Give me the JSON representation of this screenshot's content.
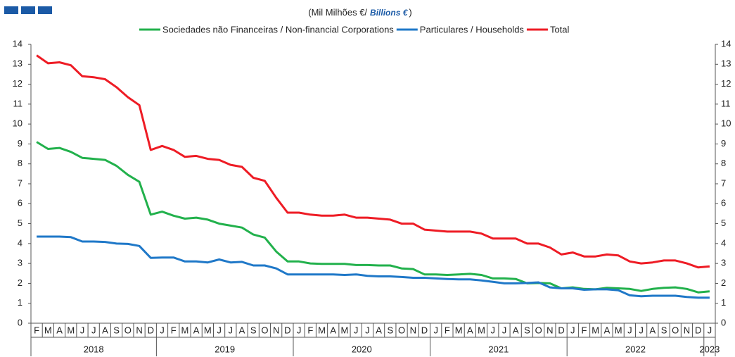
{
  "chart_data": {
    "type": "line",
    "title": "(Mil Milhões €/",
    "title_en": "Billions €",
    "title_close": ")",
    "categories": [
      "F",
      "M",
      "A",
      "M",
      "J",
      "J",
      "A",
      "S",
      "O",
      "N",
      "D",
      "J",
      "F",
      "M",
      "A",
      "M",
      "J",
      "J",
      "A",
      "S",
      "O",
      "N",
      "D",
      "J",
      "F",
      "M",
      "A",
      "M",
      "J",
      "J",
      "A",
      "S",
      "O",
      "N",
      "D",
      "J",
      "F",
      "M",
      "A",
      "M",
      "J",
      "J",
      "A",
      "S",
      "O",
      "N",
      "D",
      "J",
      "F",
      "M",
      "A",
      "M",
      "J",
      "J",
      "A",
      "S",
      "O",
      "N",
      "D",
      "J"
    ],
    "years": [
      "2018",
      "2019",
      "2020",
      "2021",
      "2022",
      "2023"
    ],
    "series": [
      {
        "name": "Sociedades não Financeiras / Non-financial Corporations",
        "color": "#22b14c",
        "values": [
          9.1,
          8.75,
          8.8,
          8.6,
          8.3,
          8.25,
          8.2,
          7.9,
          7.45,
          7.1,
          5.45,
          5.6,
          5.4,
          5.25,
          5.3,
          5.2,
          5.0,
          4.9,
          4.8,
          4.45,
          4.3,
          3.6,
          3.1,
          3.1,
          3.0,
          2.98,
          2.98,
          2.98,
          2.92,
          2.92,
          2.9,
          2.9,
          2.75,
          2.72,
          2.45,
          2.45,
          2.42,
          2.45,
          2.48,
          2.42,
          2.25,
          2.25,
          2.22,
          2.0,
          2.02,
          2.0,
          1.75,
          1.8,
          1.72,
          1.7,
          1.78,
          1.75,
          1.72,
          1.62,
          1.72,
          1.78,
          1.8,
          1.72,
          1.55,
          1.6
        ]
      },
      {
        "name": "Particulares / Households",
        "color": "#1f78c8",
        "values": [
          4.35,
          4.35,
          4.35,
          4.32,
          4.1,
          4.1,
          4.08,
          4.0,
          3.98,
          3.88,
          3.28,
          3.3,
          3.3,
          3.1,
          3.1,
          3.05,
          3.2,
          3.05,
          3.08,
          2.9,
          2.9,
          2.75,
          2.45,
          2.45,
          2.45,
          2.45,
          2.45,
          2.42,
          2.45,
          2.38,
          2.35,
          2.35,
          2.32,
          2.28,
          2.28,
          2.25,
          2.22,
          2.2,
          2.2,
          2.15,
          2.08,
          2.0,
          2.0,
          2.02,
          2.05,
          1.8,
          1.75,
          1.75,
          1.68,
          1.7,
          1.7,
          1.65,
          1.4,
          1.35,
          1.38,
          1.38,
          1.38,
          1.32,
          1.28,
          1.28
        ]
      },
      {
        "name": "Total",
        "color": "#ee1c25",
        "values": [
          13.45,
          13.05,
          13.1,
          12.95,
          12.4,
          12.35,
          12.25,
          11.85,
          11.35,
          10.95,
          8.7,
          8.9,
          8.7,
          8.35,
          8.4,
          8.25,
          8.2,
          7.95,
          7.85,
          7.3,
          7.15,
          6.3,
          5.55,
          5.55,
          5.45,
          5.4,
          5.4,
          5.45,
          5.3,
          5.3,
          5.25,
          5.2,
          5.0,
          5.0,
          4.7,
          4.65,
          4.6,
          4.6,
          4.6,
          4.5,
          4.25,
          4.25,
          4.25,
          4.0,
          4.0,
          3.8,
          3.45,
          3.55,
          3.35,
          3.35,
          3.45,
          3.4,
          3.1,
          3.0,
          3.05,
          3.15,
          3.15,
          3.0,
          2.8,
          2.85
        ]
      }
    ],
    "ylim": [
      0,
      14
    ],
    "yticks": [
      0,
      1,
      2,
      3,
      4,
      5,
      6,
      7,
      8,
      9,
      10,
      11,
      12,
      13,
      14
    ],
    "y2lim": [
      0,
      14
    ],
    "y2ticks": [
      0,
      1,
      2,
      3,
      4,
      5,
      6,
      7,
      8,
      9,
      10,
      11,
      12,
      13,
      14
    ],
    "legend": "top"
  }
}
